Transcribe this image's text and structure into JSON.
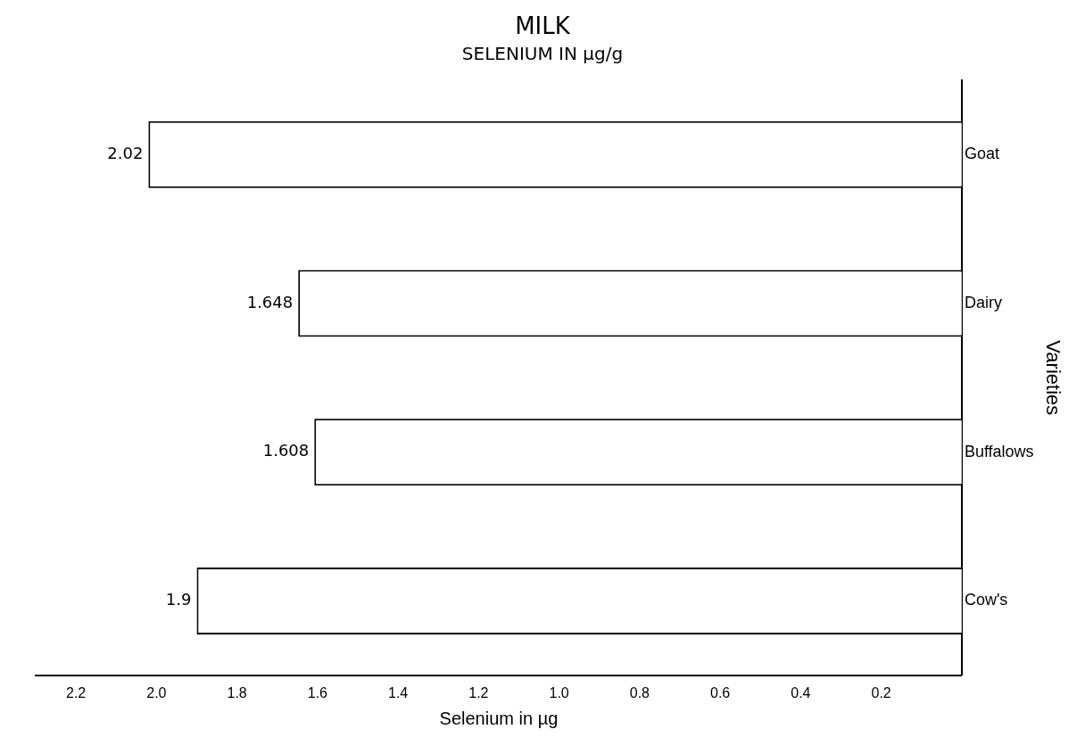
{
  "chart_data": {
    "type": "bar",
    "orientation": "horizontal",
    "title": "MILK",
    "subtitle": "SELENIUM IN µg/g",
    "xlabel": "Selenium in µg",
    "ylabel": "Varieties",
    "categories": [
      "Goat",
      "Dairy",
      "Buffalows",
      "Cow's"
    ],
    "values": [
      2.02,
      1.648,
      1.608,
      1.9
    ],
    "color": "#ffffff",
    "data_labels": true,
    "xlim": [
      2.3,
      0
    ],
    "xticks": [
      2.2,
      {
        "value": 2,
        "label": "2.0"
      },
      1.8,
      1.6,
      1.4,
      1.2,
      {
        "value": 1,
        "label": "1.0"
      },
      0.8,
      0.6,
      0.4,
      0.2
    ],
    "grid": false,
    "legend": false
  }
}
